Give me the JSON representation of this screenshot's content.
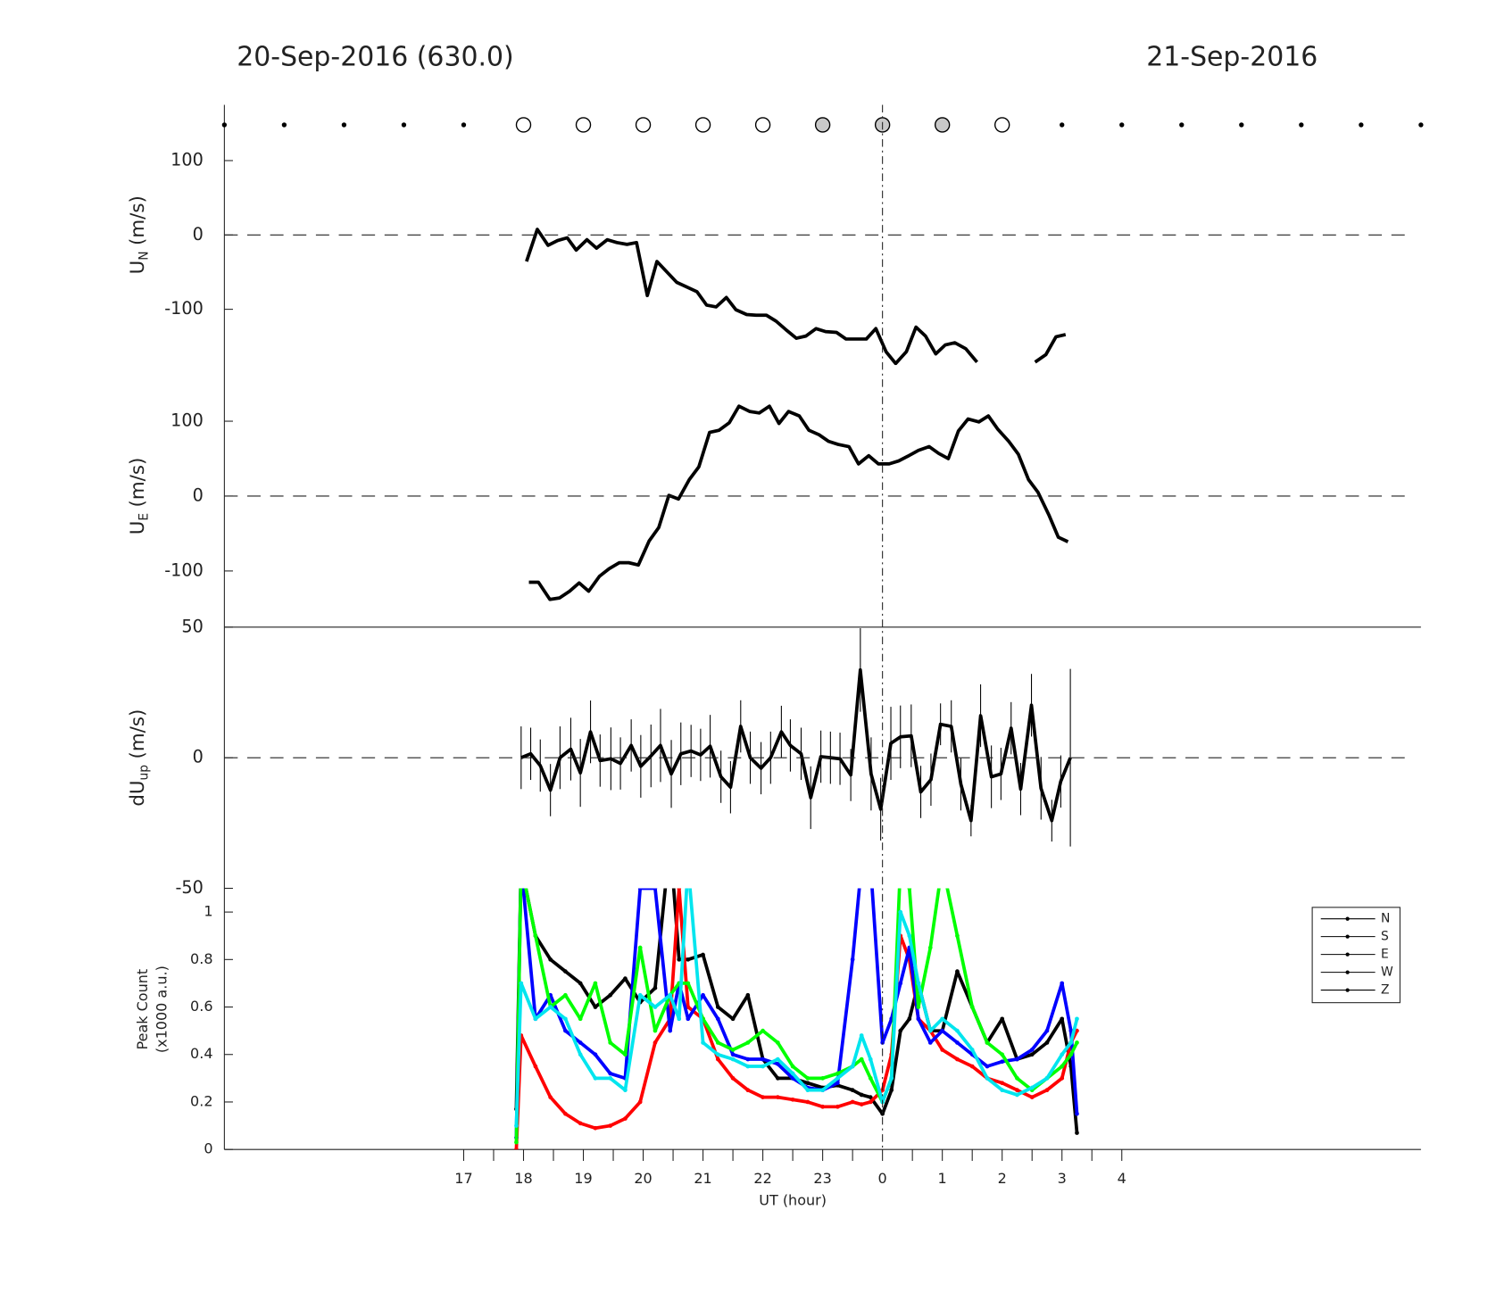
{
  "chart_data": [
    {
      "type": "markers",
      "title": "20-Sep-2016 (630.0)",
      "title_right": "21-Sep-2016",
      "xlim": [
        13,
        33
      ],
      "groups": [
        {
          "marker": "dot",
          "color": "#000000",
          "x": [
            13,
            14,
            15,
            16,
            17,
            27,
            28,
            29,
            30,
            31,
            32,
            33
          ]
        },
        {
          "marker": "circle",
          "color": "#ffffff",
          "x": [
            18,
            19,
            20,
            21,
            22,
            26
          ]
        },
        {
          "marker": "circle",
          "color": "#c8c8c8",
          "x": [
            23,
            24,
            25
          ]
        }
      ]
    },
    {
      "type": "line",
      "ylabel": "U",
      "ylabel_sub": "N",
      "ylabel_unit": "(m/s)",
      "xlim": [
        13,
        33
      ],
      "ylim": [
        -175,
        175
      ],
      "yticks": [
        -100,
        0,
        100
      ],
      "hline": 0,
      "color": "#000000",
      "x": [
        18.05,
        18.23,
        18.41,
        18.57,
        18.73,
        18.88,
        19.06,
        19.22,
        19.4,
        19.56,
        19.73,
        19.89,
        20.07,
        20.23,
        20.56,
        20.9,
        21.06,
        21.22,
        21.39,
        21.55,
        21.73,
        21.89,
        22.06,
        22.22,
        22.38,
        22.56,
        22.72,
        22.89,
        23.05,
        23.23,
        23.39,
        23.57,
        23.73,
        23.89,
        24.06,
        24.22,
        24.4,
        24.56,
        24.72,
        24.89,
        25.05,
        25.21,
        25.39,
        25.58,
        26.0,
        26.55,
        26.73,
        26.9,
        27.06
      ],
      "values": [
        -35.7,
        7.6,
        -14,
        -7.6,
        -3.8,
        -20.4,
        -6.4,
        -17.8,
        -6.4,
        -10.2,
        -12.7,
        -10.2,
        -81.5,
        -35.7,
        -63.7,
        -76.4,
        -94.3,
        -96.8,
        -84.1,
        -100.6,
        -107,
        -108,
        -108,
        -115.9,
        -127,
        -139,
        -136,
        -126,
        -130,
        -131,
        -140,
        -140,
        -140,
        -126,
        -157,
        -173,
        -157,
        -124,
        -136,
        -160,
        -148,
        -145,
        -153,
        -171,
        null,
        -171,
        -161,
        -137,
        -134
      ]
    },
    {
      "type": "line",
      "ylabel": "U",
      "ylabel_sub": "E",
      "ylabel_unit": "(m/s)",
      "xlim": [
        13,
        33
      ],
      "ylim": [
        -175,
        175
      ],
      "yticks": [
        -100,
        0,
        100
      ],
      "hline": 0,
      "color": "#000000",
      "x": [
        18.09,
        18.25,
        18.44,
        18.6,
        18.77,
        18.93,
        19.09,
        19.27,
        19.43,
        19.6,
        19.76,
        19.92,
        20.1,
        20.26,
        20.43,
        20.59,
        20.77,
        20.93,
        21.11,
        21.27,
        21.44,
        21.6,
        21.78,
        21.94,
        22.11,
        22.27,
        22.43,
        22.61,
        22.77,
        22.94,
        23.1,
        23.26,
        23.44,
        23.6,
        23.77,
        23.93,
        24.11,
        24.27,
        24.44,
        24.6,
        24.78,
        24.94,
        25.1,
        25.27,
        25.43,
        25.61,
        25.77,
        25.93,
        26.11,
        26.27,
        26.44,
        26.6,
        26.78,
        26.94,
        27.1
      ],
      "values": [
        -115,
        -115,
        -138,
        -136,
        -127,
        -116,
        -127,
        -107,
        -97,
        -89,
        -89,
        -92,
        -60,
        -42,
        1,
        -4,
        22,
        39,
        85,
        88,
        98,
        120,
        113,
        111,
        120,
        97,
        113,
        107,
        88,
        82,
        73,
        69,
        66,
        43,
        54,
        43,
        43,
        47,
        54,
        61,
        66,
        57,
        50,
        87,
        103,
        99,
        107,
        89,
        73,
        56,
        22,
        5,
        -25,
        -55,
        -61
      ]
    },
    {
      "type": "errorline",
      "ylabel": "dU",
      "ylabel_sub": "up",
      "ylabel_unit": "(m/s)",
      "xlim": [
        13,
        33
      ],
      "ylim": [
        -50,
        50
      ],
      "yticks": [
        -50,
        0,
        50
      ],
      "hline": 0,
      "color": "#000000",
      "x": [
        17.96,
        18.12,
        18.28,
        18.45,
        18.61,
        18.79,
        18.95,
        19.12,
        19.28,
        19.46,
        19.62,
        19.8,
        19.96,
        20.13,
        20.29,
        20.47,
        20.63,
        20.8,
        20.96,
        21.12,
        21.3,
        21.46,
        21.63,
        21.79,
        21.97,
        22.13,
        22.31,
        22.46,
        22.64,
        22.8,
        22.97,
        23.13,
        23.29,
        23.47,
        23.63,
        23.81,
        23.97,
        24.14,
        24.3,
        24.48,
        24.64,
        24.81,
        24.97,
        25.15,
        25.31,
        25.48,
        25.64,
        25.82,
        25.98,
        26.15,
        26.31,
        26.49,
        26.65,
        26.83,
        26.98,
        27.14
      ],
      "values": [
        0,
        1.5,
        -3,
        -12.4,
        0,
        3.3,
        -5.8,
        9.9,
        -1.1,
        -0.4,
        -2.2,
        4.7,
        -3.3,
        0.7,
        4.7,
        -6.2,
        1.5,
        2.6,
        1.1,
        4.4,
        -7.3,
        -11.3,
        12,
        0,
        -4,
        0,
        9.9,
        4.7,
        1.5,
        -15.3,
        0.4,
        0,
        -0.4,
        -6.6,
        33.6,
        -6.2,
        -19.7,
        5.5,
        8,
        8.4,
        -13.1,
        -8.4,
        12.8,
        12,
        -10.2,
        -24.1,
        16.1,
        -7.3,
        -6.2,
        11.3,
        -12,
        20.1,
        -11.7,
        -24.1,
        -9.1,
        0
      ],
      "errors": [
        12,
        10,
        10,
        10,
        12,
        12,
        13,
        12,
        10,
        12,
        10,
        10,
        12,
        12,
        14,
        13,
        12,
        10,
        10,
        12,
        10,
        10,
        10,
        10,
        10,
        10,
        10,
        10,
        10,
        12,
        10,
        10,
        10,
        10,
        16,
        14,
        12,
        14,
        12,
        12,
        10,
        10,
        8,
        10,
        10,
        6,
        12,
        12,
        10,
        10,
        10,
        12,
        12,
        8,
        10,
        34
      ]
    },
    {
      "type": "multiline",
      "ylabel": [
        "Peak Count",
        "(x1000 a.u.)"
      ],
      "xlabel": "UT (hour)",
      "xlim": [
        13,
        33
      ],
      "ylim": [
        0,
        1.1
      ],
      "yticks": [
        0,
        0.2,
        0.4,
        0.6,
        0.8,
        1
      ],
      "xticks": [
        17,
        18,
        19,
        20,
        21,
        22,
        23,
        {
          "value": 24,
          "label": "0"
        },
        {
          "value": 25,
          "label": "1"
        },
        {
          "value": 26,
          "label": "2"
        },
        {
          "value": 27,
          "label": "3"
        },
        {
          "value": 28,
          "label": "4"
        }
      ],
      "xminorticks": [
        17.5,
        18.5,
        19.5,
        20.5,
        21.5,
        22.5,
        23.5,
        24.5,
        25.5,
        26.5,
        27.5
      ],
      "vline": 24,
      "legend_position": "east",
      "legend_color": "#000000",
      "x": [
        17.88,
        17.96,
        18.2,
        18.45,
        18.7,
        18.95,
        19.2,
        19.45,
        19.7,
        19.95,
        20.2,
        20.45,
        20.6,
        20.75,
        21.0,
        21.25,
        21.5,
        21.75,
        22.0,
        22.25,
        22.5,
        22.75,
        23.0,
        23.25,
        23.5,
        23.65,
        23.8,
        24.0,
        24.15,
        24.3,
        24.45,
        24.6,
        24.8,
        25.0,
        25.25,
        25.5,
        25.75,
        26.0,
        26.25,
        26.5,
        26.75,
        27.0,
        27.15,
        27.25
      ],
      "series": [
        {
          "name": "N",
          "color": "#000000",
          "values": [
            0.17,
            1.2,
            0.9,
            0.8,
            0.75,
            0.7,
            0.6,
            0.65,
            0.72,
            0.62,
            0.68,
            1.3,
            0.8,
            0.8,
            0.82,
            0.6,
            0.55,
            0.65,
            0.38,
            0.3,
            0.3,
            0.28,
            0.26,
            0.27,
            0.25,
            0.23,
            0.22,
            0.15,
            0.25,
            0.5,
            0.55,
            0.7,
            0.5,
            0.5,
            0.75,
            0.6,
            0.45,
            0.55,
            0.38,
            0.4,
            0.45,
            0.55,
            0.35,
            0.07
          ]
        },
        {
          "name": "S",
          "color": "#ff0000",
          "values": [
            0.0,
            0.48,
            0.35,
            0.22,
            0.15,
            0.11,
            0.09,
            0.1,
            0.13,
            0.2,
            0.45,
            0.55,
            1.1,
            0.6,
            0.55,
            0.38,
            0.3,
            0.25,
            0.22,
            0.22,
            0.21,
            0.2,
            0.18,
            0.18,
            0.2,
            0.19,
            0.2,
            0.25,
            0.4,
            0.9,
            0.8,
            0.55,
            0.5,
            0.42,
            0.38,
            0.35,
            0.3,
            0.28,
            0.25,
            0.22,
            0.25,
            0.3,
            0.45,
            0.5
          ]
        },
        {
          "name": "E",
          "color": "#0000ff",
          "values": [
            0.05,
            1.2,
            0.55,
            0.65,
            0.5,
            0.45,
            0.4,
            0.32,
            0.3,
            1.1,
            1.1,
            0.5,
            0.7,
            0.55,
            0.65,
            0.55,
            0.4,
            0.38,
            0.38,
            0.36,
            0.3,
            0.26,
            0.25,
            0.28,
            0.8,
            1.2,
            1.2,
            0.45,
            0.55,
            0.7,
            0.85,
            0.55,
            0.45,
            0.5,
            0.45,
            0.4,
            0.35,
            0.37,
            0.38,
            0.42,
            0.5,
            0.7,
            0.5,
            0.15
          ]
        },
        {
          "name": "W",
          "color": "#00ff00",
          "values": [
            0.03,
            1.2,
            0.9,
            0.6,
            0.65,
            0.55,
            0.7,
            0.45,
            0.4,
            0.85,
            0.5,
            0.65,
            0.7,
            0.7,
            0.55,
            0.45,
            0.42,
            0.45,
            0.5,
            0.45,
            0.35,
            0.3,
            0.3,
            0.32,
            0.35,
            0.38,
            0.3,
            0.2,
            0.3,
            1.2,
            1.1,
            0.6,
            0.85,
            1.2,
            0.9,
            0.6,
            0.45,
            0.4,
            0.3,
            0.25,
            0.3,
            0.35,
            0.4,
            0.45
          ]
        },
        {
          "name": "Z",
          "color": "#00e5ee",
          "values": [
            0.1,
            0.7,
            0.55,
            0.6,
            0.55,
            0.4,
            0.3,
            0.3,
            0.25,
            0.65,
            0.6,
            0.65,
            0.55,
            1.2,
            0.45,
            0.4,
            0.38,
            0.35,
            0.35,
            0.38,
            0.32,
            0.25,
            0.25,
            0.3,
            0.35,
            0.48,
            0.38,
            0.2,
            0.3,
            1.0,
            0.9,
            0.7,
            0.5,
            0.55,
            0.5,
            0.42,
            0.3,
            0.25,
            0.23,
            0.26,
            0.3,
            0.4,
            0.45,
            0.55
          ]
        }
      ]
    }
  ]
}
